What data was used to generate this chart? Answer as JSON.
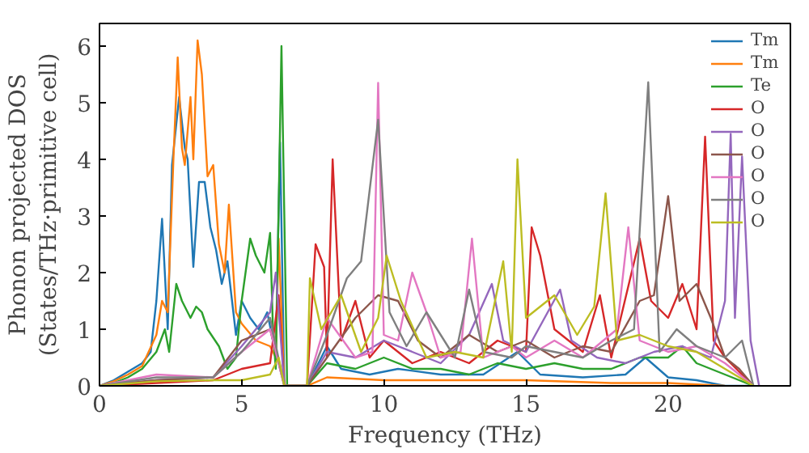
{
  "chart_data": {
    "type": "line",
    "xlabel": "Frequency (THz)",
    "ylabel": "Phonon projected DOS\n(States/THz·primitive cell)",
    "xlim": [
      0,
      24.3
    ],
    "ylim": [
      0,
      6.4
    ],
    "xticks": [
      0,
      5,
      10,
      15,
      20
    ],
    "yticks": [
      0,
      1,
      2,
      3,
      4,
      5,
      6
    ],
    "grid": false,
    "legend": "top right",
    "series": [
      {
        "name": "Tm",
        "color": "#1f77b4",
        "x": [
          0,
          0.5,
          1.0,
          1.5,
          1.8,
          2.0,
          2.2,
          2.4,
          2.55,
          2.8,
          3.0,
          3.1,
          3.3,
          3.5,
          3.7,
          3.9,
          4.1,
          4.3,
          4.5,
          4.8,
          5.0,
          5.3,
          5.6,
          5.9,
          6.1,
          6.2,
          6.35,
          6.5,
          7.3,
          7.6,
          8.0,
          8.5,
          9.5,
          10.5,
          12,
          13.5,
          14.7,
          15.5,
          17,
          18.5,
          19.2,
          20,
          21,
          21.5,
          22,
          23
        ],
        "values": [
          0,
          0.1,
          0.25,
          0.4,
          0.6,
          1.5,
          2.95,
          1.0,
          3.9,
          5.1,
          4.2,
          4.0,
          2.1,
          3.6,
          3.6,
          2.8,
          2.4,
          1.8,
          2.2,
          0.9,
          1.5,
          1.2,
          1.0,
          1.3,
          0.8,
          0.6,
          4.3,
          0,
          0,
          0.3,
          0.7,
          0.3,
          0.2,
          0.3,
          0.2,
          0.2,
          0.6,
          0.2,
          0.15,
          0.2,
          0.5,
          0.15,
          0.1,
          0.05,
          0,
          0
        ]
      },
      {
        "name": "Tm",
        "color": "#ff7f0e",
        "x": [
          0,
          0.5,
          1.0,
          1.5,
          2.0,
          2.2,
          2.4,
          2.6,
          2.75,
          2.9,
          3.0,
          3.2,
          3.3,
          3.45,
          3.6,
          3.8,
          4.0,
          4.2,
          4.4,
          4.55,
          4.8,
          5.0,
          5.5,
          6.0,
          6.2,
          6.3,
          6.5,
          7.3,
          8,
          10,
          12,
          15,
          18,
          20,
          22
        ],
        "values": [
          0,
          0.08,
          0.2,
          0.35,
          0.9,
          1.5,
          1.3,
          4.0,
          5.8,
          4.2,
          3.9,
          5.1,
          4.0,
          6.1,
          5.5,
          3.7,
          3.9,
          2.5,
          2.0,
          3.2,
          1.3,
          1.1,
          0.8,
          0.7,
          0.5,
          2.6,
          0,
          0,
          0.15,
          0.1,
          0.1,
          0.1,
          0.05,
          0.05,
          0
        ]
      },
      {
        "name": "Te",
        "color": "#2ca02c",
        "x": [
          0,
          0.5,
          1.0,
          1.5,
          2.0,
          2.3,
          2.45,
          2.7,
          2.9,
          3.2,
          3.4,
          3.6,
          3.8,
          4.2,
          4.5,
          4.8,
          5.0,
          5.3,
          5.5,
          5.8,
          6.0,
          6.1,
          6.2,
          6.4,
          6.6,
          7.3,
          8,
          9,
          10,
          11,
          12,
          13,
          14,
          15,
          16,
          17,
          18,
          19,
          20,
          20.5,
          21,
          22,
          23
        ],
        "values": [
          0,
          0.05,
          0.15,
          0.3,
          0.6,
          1.0,
          0.6,
          1.8,
          1.5,
          1.2,
          1.4,
          1.3,
          1.0,
          0.7,
          0.3,
          0.5,
          1.5,
          2.6,
          2.3,
          2.0,
          2.7,
          1.0,
          0.3,
          6.0,
          0,
          0,
          0.4,
          0.3,
          0.5,
          0.3,
          0.3,
          0.2,
          0.4,
          0.3,
          0.4,
          0.3,
          0.3,
          0.5,
          0.5,
          0.7,
          0.4,
          0.2,
          0
        ]
      },
      {
        "name": "O",
        "color": "#d62728",
        "x": [
          0,
          2,
          4,
          5,
          6,
          6.3,
          6.5,
          7.3,
          7.6,
          7.9,
          8.0,
          8.2,
          8.5,
          9.0,
          9.5,
          10,
          11,
          12,
          13,
          14,
          15,
          15.2,
          15.5,
          16,
          17,
          17.6,
          18,
          19.0,
          19.4,
          20,
          20.5,
          21,
          21.3,
          21.6,
          22,
          23
        ],
        "values": [
          0,
          0.05,
          0.1,
          0.3,
          0.4,
          1.6,
          0,
          0,
          2.5,
          2.1,
          0.5,
          4.0,
          0.8,
          1.5,
          0.5,
          0.8,
          0.4,
          0.6,
          0.4,
          0.8,
          0.6,
          2.8,
          2.3,
          1.0,
          0.6,
          1.6,
          0.5,
          2.6,
          1.5,
          1.2,
          1.8,
          1.0,
          4.4,
          0.8,
          0.5,
          0
        ]
      },
      {
        "name": "O",
        "color": "#9467bd",
        "x": [
          0,
          2,
          4,
          5,
          6,
          6.2,
          6.5,
          7.3,
          8,
          9,
          10,
          11,
          12,
          13,
          13.8,
          14.2,
          15,
          16.2,
          16.6,
          17.5,
          18.5,
          19.5,
          20.5,
          21.5,
          22.0,
          22.2,
          22.35,
          22.6,
          22.9,
          23.2
        ],
        "values": [
          0,
          0.1,
          0.15,
          0.7,
          1.3,
          2.0,
          0,
          0,
          0.6,
          0.5,
          0.8,
          0.6,
          0.4,
          0.9,
          1.8,
          0.8,
          0.6,
          1.7,
          0.8,
          0.5,
          0.4,
          0.6,
          0.7,
          0.5,
          1.5,
          4.45,
          1.2,
          4.05,
          0.8,
          0
        ]
      },
      {
        "name": "O",
        "color": "#8c564b",
        "x": [
          0,
          2,
          4,
          5,
          6,
          6.5,
          7.3,
          8,
          9,
          9.8,
          10.5,
          11.2,
          12,
          13,
          14,
          15,
          16,
          17,
          18,
          19,
          19.5,
          20.0,
          20.4,
          21,
          21.5,
          22,
          22.5,
          23
        ],
        "values": [
          0,
          0.1,
          0.15,
          0.8,
          1.0,
          0,
          0,
          0.5,
          1.2,
          1.6,
          1.5,
          0.8,
          0.5,
          0.9,
          0.6,
          0.8,
          0.5,
          0.7,
          0.6,
          1.5,
          1.6,
          3.35,
          1.5,
          1.8,
          1.2,
          0.5,
          0.3,
          0
        ]
      },
      {
        "name": "O",
        "color": "#e377c2",
        "x": [
          0,
          2,
          4,
          5,
          6,
          6.5,
          7.3,
          8,
          9,
          9.6,
          9.8,
          10,
          10.5,
          11.0,
          11.5,
          12,
          12.7,
          13.1,
          13.5,
          14.5,
          15,
          16,
          17,
          18.2,
          18.6,
          19,
          20,
          21,
          22,
          23
        ],
        "values": [
          0,
          0.2,
          0.15,
          0.6,
          1.0,
          0,
          0,
          1.2,
          0.5,
          0.6,
          5.35,
          0.9,
          0.8,
          2.0,
          1.3,
          0.5,
          0.6,
          2.6,
          0.5,
          0.7,
          0.5,
          0.8,
          0.5,
          1.0,
          2.8,
          0.8,
          0.6,
          0.7,
          0.4,
          0
        ]
      },
      {
        "name": "O",
        "color": "#7f7f7f",
        "x": [
          0,
          2,
          4,
          5,
          6,
          6.5,
          7.3,
          8,
          8.7,
          9.2,
          9.8,
          10.2,
          10.8,
          11.5,
          12.5,
          13.0,
          13.5,
          14.5,
          15,
          16,
          17,
          18,
          18.8,
          19.3,
          19.7,
          20.3,
          21,
          22,
          22.6,
          23
        ],
        "values": [
          0,
          0.15,
          0.15,
          0.6,
          1.2,
          0,
          0,
          0.9,
          1.9,
          2.2,
          4.7,
          1.3,
          0.7,
          1.3,
          0.5,
          1.7,
          0.6,
          0.5,
          0.7,
          0.6,
          0.5,
          0.8,
          1.0,
          5.36,
          0.6,
          1.0,
          0.7,
          0.5,
          0.8,
          0
        ]
      },
      {
        "name": "O",
        "color": "#bcbd22",
        "x": [
          0,
          2,
          4,
          5,
          6,
          6.3,
          6.5,
          7.3,
          7.4,
          7.8,
          8.5,
          9.2,
          9.8,
          10.1,
          10.6,
          11.5,
          12.5,
          13.5,
          14.2,
          14.5,
          14.7,
          15.0,
          16,
          16.8,
          17.4,
          17.8,
          18.2,
          19,
          20,
          21,
          22,
          23
        ],
        "values": [
          0,
          0.08,
          0.1,
          0.1,
          0.2,
          0.5,
          0,
          0,
          1.9,
          1.0,
          1.6,
          0.6,
          1.2,
          2.3,
          1.5,
          0.5,
          0.6,
          0.5,
          2.2,
          0.6,
          4.0,
          1.2,
          1.6,
          0.9,
          1.4,
          3.4,
          0.8,
          0.9,
          0.7,
          0.6,
          0.3,
          0
        ]
      }
    ]
  }
}
